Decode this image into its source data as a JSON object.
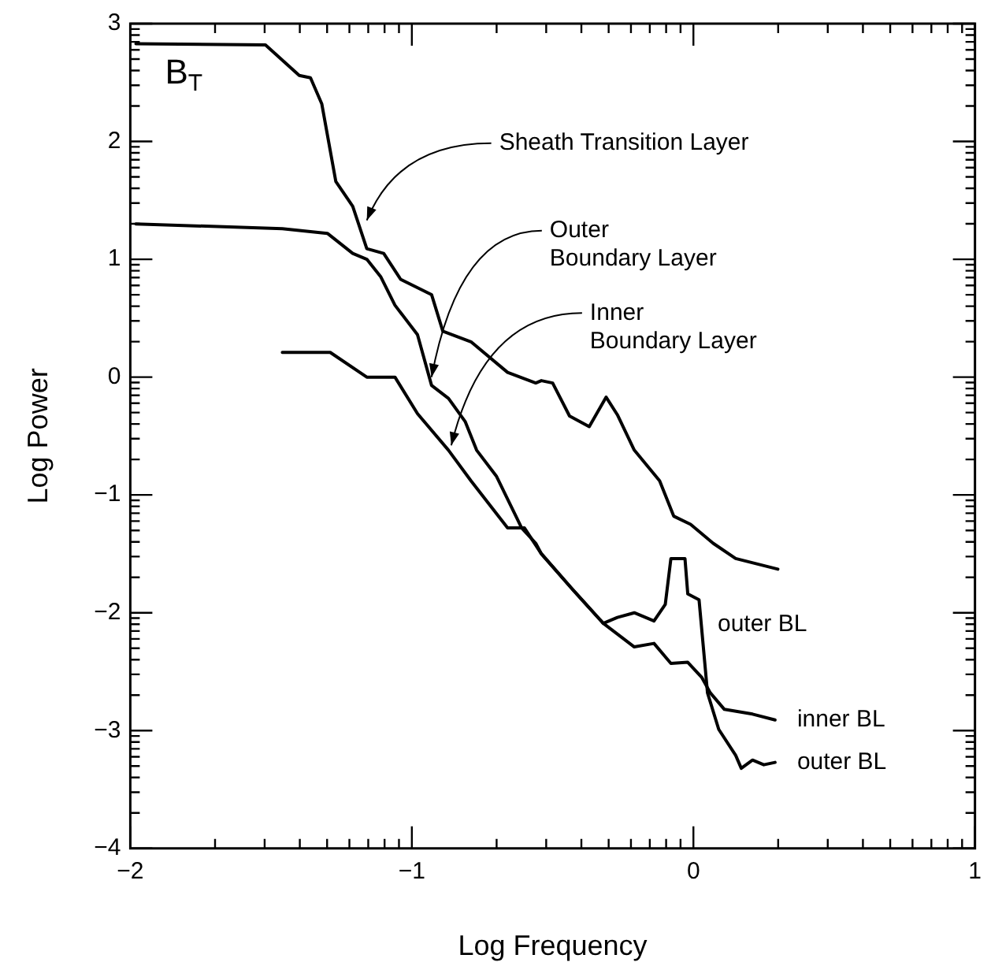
{
  "chart_data": {
    "type": "line",
    "xlabel": "Log Frequency",
    "ylabel": "Log Power",
    "xlim": [
      -2,
      1
    ],
    "xticks": [
      -2,
      -1,
      0,
      1
    ],
    "ylim": [
      -4,
      3
    ],
    "yticks": [
      -4,
      -3,
      -2,
      -1,
      0,
      1,
      2,
      3
    ],
    "grid": false,
    "legend": false,
    "marker": "none",
    "line_style": "solid",
    "series": [
      {
        "color": "#000000",
        "x": [
          -1.98,
          -1.52,
          -1.4,
          -1.36,
          -1.32,
          -1.27,
          -1.21,
          -1.16,
          -1.1,
          -1.04,
          -0.93,
          -0.89,
          -0.79,
          -0.66,
          -0.56,
          -0.54,
          -0.5,
          -0.44,
          -0.37,
          -0.31,
          -0.27,
          -0.21,
          -0.12,
          -0.07,
          -0.01,
          0.07,
          0.15,
          0.3
        ],
        "values": [
          2.83,
          2.82,
          2.56,
          2.54,
          2.32,
          1.66,
          1.45,
          1.09,
          1.05,
          0.83,
          0.7,
          0.39,
          0.3,
          0.04,
          -0.05,
          -0.03,
          -0.05,
          -0.33,
          -0.42,
          -0.17,
          -0.32,
          -0.62,
          -0.88,
          -1.18,
          -1.25,
          -1.41,
          -1.54,
          -1.63
        ]
      },
      {
        "color": "#000000",
        "x": [
          -1.98,
          -1.46,
          -1.3,
          -1.21,
          -1.16,
          -1.11,
          -1.06,
          -0.98,
          -0.93,
          -0.87,
          -0.81,
          -0.77,
          -0.7,
          -0.61,
          -0.56,
          -0.54,
          -0.43,
          -0.32,
          -0.27,
          -0.21,
          -0.14,
          -0.1,
          -0.08,
          -0.03,
          -0.02,
          0.02,
          0.05,
          0.09,
          0.15,
          0.17,
          0.21,
          0.25,
          0.29
        ],
        "values": [
          1.3,
          1.26,
          1.22,
          1.05,
          1.0,
          0.85,
          0.61,
          0.36,
          -0.07,
          -0.18,
          -0.38,
          -0.62,
          -0.84,
          -1.28,
          -1.41,
          -1.5,
          -1.8,
          -2.09,
          -2.04,
          -2.0,
          -2.07,
          -1.93,
          -1.54,
          -1.54,
          -1.84,
          -1.89,
          -2.68,
          -2.99,
          -3.21,
          -3.32,
          -3.25,
          -3.29,
          -3.27
        ]
      },
      {
        "color": "#000000",
        "x": [
          -1.46,
          -1.29,
          -1.16,
          -1.06,
          -0.98,
          -0.87,
          -0.79,
          -0.66,
          -0.6,
          -0.54,
          -0.43,
          -0.32,
          -0.21,
          -0.14,
          -0.08,
          -0.02,
          0.03,
          0.06,
          0.11,
          0.21,
          0.29
        ],
        "values": [
          0.21,
          0.21,
          0.0,
          0.0,
          -0.31,
          -0.62,
          -0.88,
          -1.28,
          -1.28,
          -1.5,
          -1.8,
          -2.09,
          -2.29,
          -2.26,
          -2.43,
          -2.42,
          -2.55,
          -2.68,
          -2.82,
          -2.86,
          -2.91
        ]
      }
    ],
    "annotations": [
      "B$_{T}$",
      {
        "text": "Sheath Transition Layer",
        "x": -1.16,
        "y": 1.33
      },
      {
        "text": "Outer\nBoundary Layer",
        "x": -0.93,
        "y": 0.0
      },
      {
        "text": "Inner\nBoundary Layer",
        "x": -0.86,
        "y": -0.58
      },
      {
        "text": "outer BL",
        "x": 0.03,
        "y": -2.1
      },
      {
        "text": "inner BL",
        "x": 0.29,
        "y": -2.91
      },
      {
        "text": "outer BL",
        "x": 0.29,
        "y": -3.27
      }
    ]
  }
}
